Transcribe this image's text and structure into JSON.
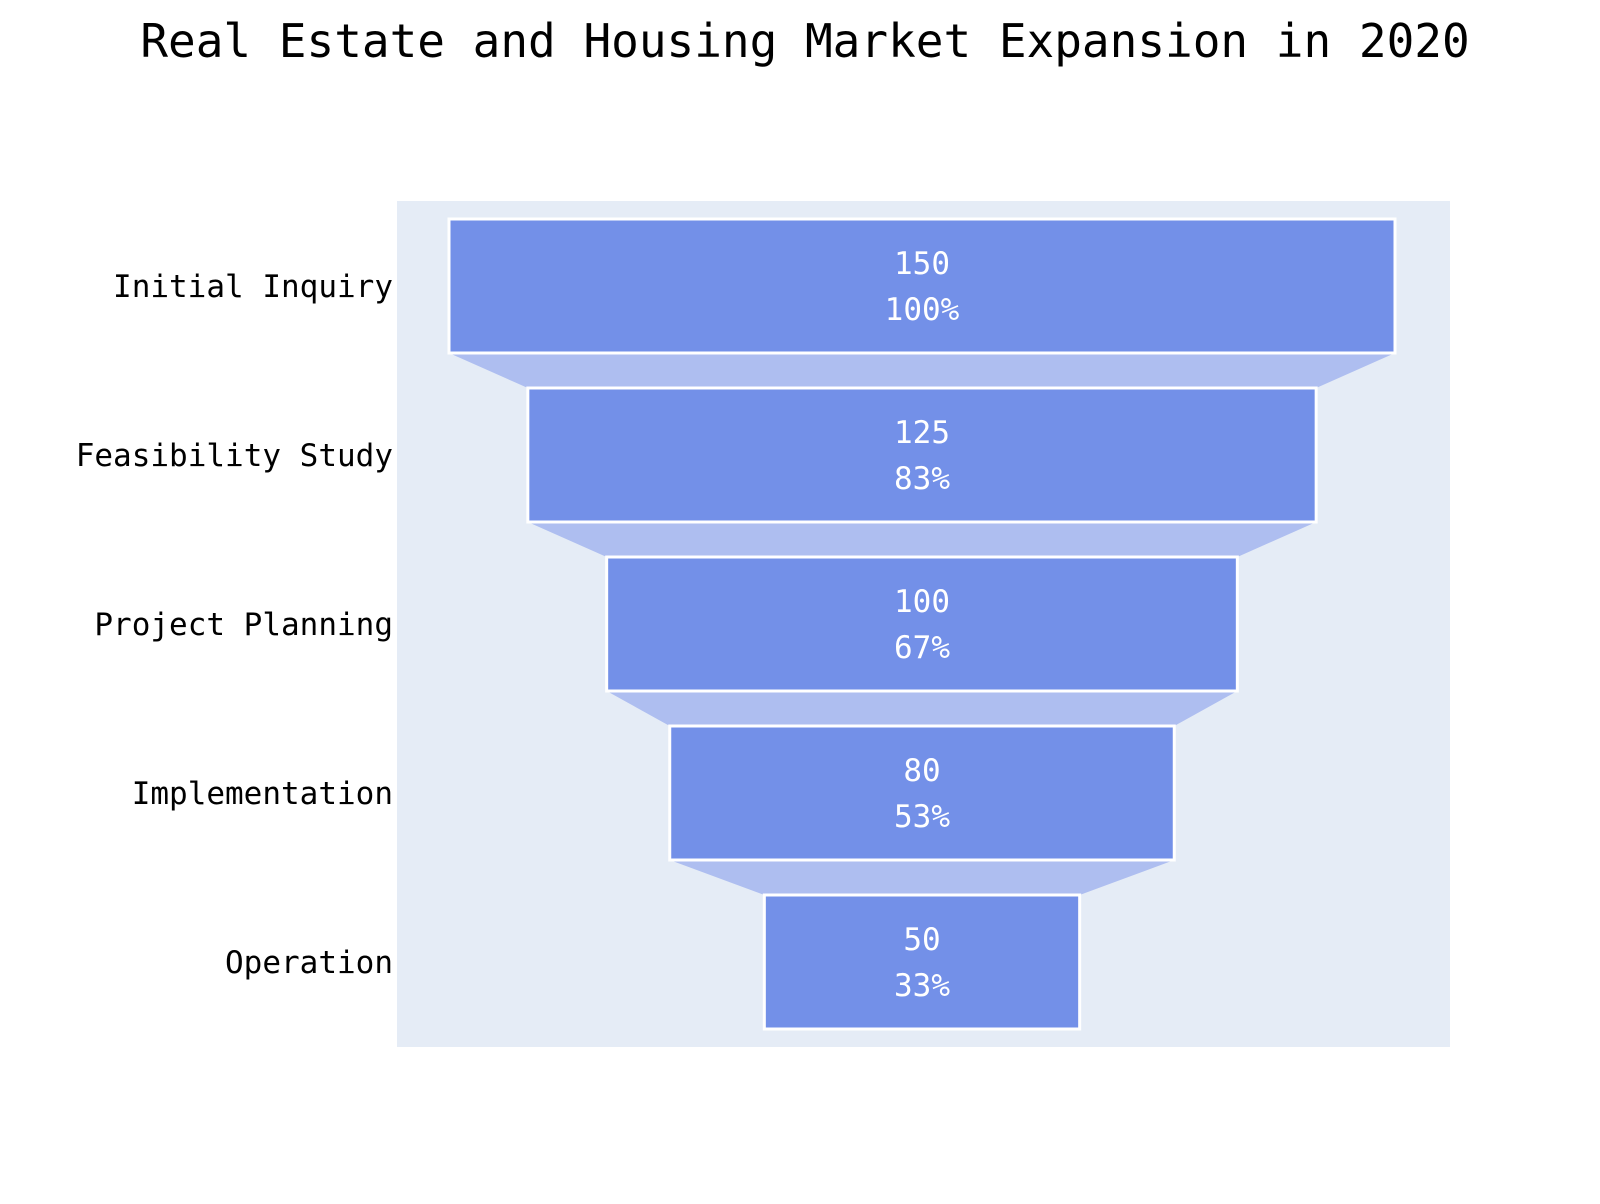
{
  "chart_data": {
    "type": "funnel",
    "title": "Real Estate and Housing Market Expansion in 2020",
    "stages": [
      "Initial Inquiry",
      "Feasibility Study",
      "Project Planning",
      "Implementation",
      "Operation"
    ],
    "values": [
      150,
      125,
      100,
      80,
      50
    ],
    "percent_labels": [
      "100%",
      "83%",
      "67%",
      "53%",
      "33%"
    ],
    "colors": {
      "plot_background": "#e5ecf6",
      "bar_fill": "#7390e8",
      "connector_fill": "#aebef0",
      "bar_outline": "#ffffff",
      "text_inside": "#ffffff"
    }
  }
}
